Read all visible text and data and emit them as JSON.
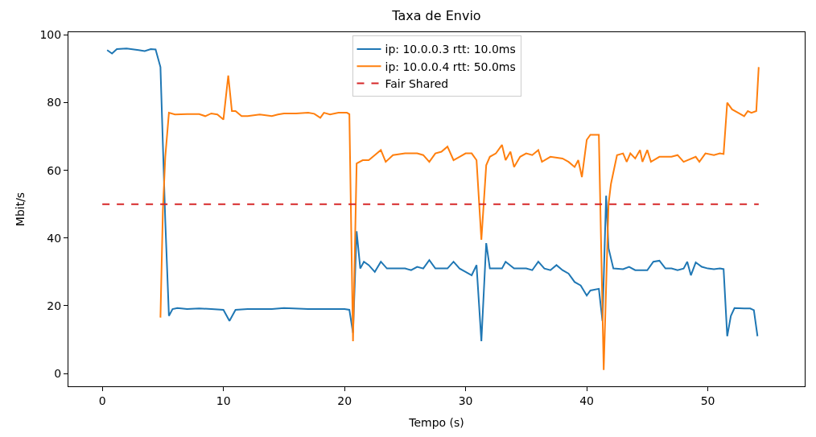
{
  "chart_data": {
    "type": "line",
    "title": "Taxa de Envio",
    "xlabel": "Tempo (s)",
    "ylabel": "Mbit/s",
    "xlim": [
      -2.8,
      58
    ],
    "ylim": [
      -3.8,
      100.8
    ],
    "xticks": [
      0,
      10,
      20,
      30,
      40,
      50
    ],
    "yticks": [
      0,
      20,
      40,
      60,
      80,
      100
    ],
    "legend": "top",
    "line_style": "solid",
    "series": [
      {
        "name": "ip: 10.0.0.3 rtt: 10.0ms",
        "color": "#1f77b4",
        "x": [
          0.4,
          0.8,
          1.2,
          2,
          3,
          3.5,
          4,
          4.4,
          4.8,
          5.2,
          5.5,
          5.8,
          6.2,
          7,
          8,
          9,
          10,
          10.5,
          11,
          12,
          14,
          15,
          17,
          19,
          20,
          20.4,
          20.7,
          21,
          21.3,
          21.6,
          22,
          22.5,
          23,
          23.5,
          25,
          25.5,
          26,
          26.5,
          27,
          27.5,
          28.5,
          29,
          29.5,
          30,
          30.5,
          30.9,
          31.3,
          31.7,
          32,
          33,
          33.3,
          34,
          35,
          35.5,
          36,
          36.5,
          37,
          37.5,
          38,
          38.5,
          39,
          39.5,
          40,
          40.3,
          41,
          41.3,
          41.6,
          41.8,
          42.2,
          43,
          43.5,
          44,
          45,
          45.5,
          46,
          46.5,
          47,
          47.5,
          48,
          48.3,
          48.6,
          49,
          49.5,
          50,
          50.5,
          51,
          51.3,
          51.6,
          51.9,
          52.2,
          53,
          53.5,
          53.8,
          54.1
        ],
        "values": [
          95.5,
          94.5,
          95.8,
          96,
          95.5,
          95.2,
          95.8,
          95.7,
          90.5,
          45,
          17,
          19,
          19.3,
          19,
          19.2,
          19,
          18.8,
          15.5,
          18.8,
          19,
          19,
          19.3,
          19,
          19,
          19,
          18.8,
          12,
          42,
          31,
          33,
          32,
          30,
          33,
          31,
          31,
          30.5,
          31.5,
          31,
          33.5,
          31,
          31,
          33,
          31,
          30,
          29,
          32,
          9.5,
          38.5,
          31,
          31,
          33,
          31,
          31,
          30.5,
          33,
          31,
          30.5,
          32,
          30.5,
          29.5,
          27,
          26,
          23,
          24.5,
          25,
          15.5,
          52.5,
          37,
          31,
          30.8,
          31.5,
          30.5,
          30.5,
          33,
          33.3,
          31,
          31,
          30.5,
          31,
          33,
          29,
          32.8,
          31.5,
          31,
          30.8,
          31,
          30.8,
          11,
          17,
          19.3,
          19.2,
          19.2,
          18.7,
          11
        ]
      },
      {
        "name": "ip: 10.0.0.4 rtt: 50.0ms",
        "color": "#ff7f0e",
        "x": [
          4.8,
          5.0,
          5.2,
          5.5,
          6,
          7,
          8,
          8.5,
          9,
          9.5,
          10,
          10.4,
          10.7,
          11,
          11.5,
          12,
          13,
          14,
          14.5,
          15,
          16,
          17,
          17.5,
          18,
          18.3,
          18.8,
          19.5,
          20.2,
          20.4,
          20.7,
          21,
          21.5,
          22,
          22.5,
          23,
          23.4,
          24,
          25,
          26,
          26.5,
          27,
          27.5,
          28,
          28.5,
          29,
          29.5,
          30,
          30.5,
          30.9,
          31.3,
          31.7,
          32,
          32.5,
          33,
          33.3,
          33.7,
          34,
          34.5,
          35,
          35.5,
          36,
          36.3,
          37,
          38,
          38.5,
          39,
          39.3,
          39.6,
          40,
          40.3,
          40.7,
          41,
          41.4,
          41.8,
          42,
          42.5,
          43,
          43.3,
          43.6,
          44,
          44.4,
          44.6,
          45,
          45.3,
          46,
          47,
          47.5,
          48,
          49,
          49.3,
          49.8,
          50.5,
          51,
          51.3,
          51.6,
          52,
          52.5,
          53,
          53.3,
          53.6,
          54,
          54.2
        ],
        "values": [
          16.5,
          48,
          64,
          77,
          76.5,
          76.6,
          76.6,
          76,
          76.8,
          76.5,
          75,
          88,
          77.5,
          77.5,
          76,
          76,
          76.5,
          76,
          76.5,
          76.8,
          76.8,
          77,
          76.7,
          75.5,
          77,
          76.5,
          77,
          77,
          76.6,
          9.5,
          62,
          63,
          63,
          64.5,
          66,
          62.5,
          64.5,
          65,
          65,
          64.5,
          62.5,
          65,
          65.5,
          67,
          63,
          64,
          65,
          65,
          63,
          39.5,
          61.5,
          64,
          65,
          67.5,
          63,
          65.5,
          61,
          64,
          65,
          64.5,
          66,
          62.5,
          64,
          63.5,
          62.5,
          61,
          63,
          58,
          69,
          70.5,
          70.5,
          70.5,
          1,
          50,
          56,
          64.5,
          65,
          62.5,
          65,
          63.5,
          66,
          62.5,
          66,
          62.5,
          64,
          64,
          64.5,
          62.5,
          64,
          62.5,
          65,
          64.5,
          65,
          64.8,
          80,
          78,
          77,
          76,
          77.5,
          77,
          77.5,
          90.5
        ]
      },
      {
        "name": "Fair Shared",
        "color": "#d62728",
        "line_style": "dashed",
        "x": [
          0,
          54.2
        ],
        "values": [
          50,
          50
        ]
      }
    ]
  }
}
